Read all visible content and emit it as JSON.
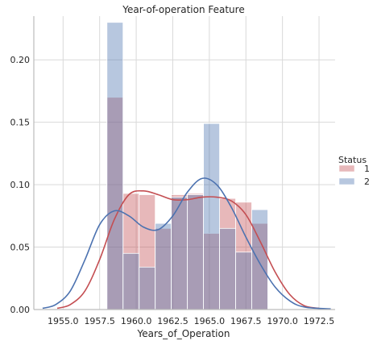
{
  "chart_data": {
    "type": "histogram",
    "title": "Year-of-operation Feature",
    "xlabel": "Years_of_Operation",
    "ylabel": "",
    "xlim": [
      1953.0,
      1973.6
    ],
    "ylim": [
      0.0,
      0.235
    ],
    "x_ticks": [
      1955.0,
      1957.5,
      1960.0,
      1962.5,
      1965.0,
      1967.5,
      1970.0,
      1972.5
    ],
    "x_tick_labels": [
      "1955.0",
      "1957.5",
      "1960.0",
      "1962.5",
      "1965.0",
      "1967.5",
      "1970.0",
      "1972.5"
    ],
    "y_ticks": [
      0.0,
      0.05,
      0.1,
      0.15,
      0.2
    ],
    "y_tick_labels": [
      "0.00",
      "0.05",
      "0.10",
      "0.15",
      "0.20"
    ],
    "grid": true,
    "legend": {
      "title": "Status",
      "placement": "right"
    },
    "bin_edges": [
      1958.0,
      1959.1,
      1960.2,
      1961.3,
      1962.4,
      1963.5,
      1964.6,
      1965.7,
      1966.8,
      1967.9,
      1969.0
    ],
    "series": [
      {
        "name": "1",
        "color": "#c44e52",
        "bar_values": [
          0.17,
          0.093,
          0.092,
          0.065,
          0.092,
          0.093,
          0.061,
          0.089,
          0.086,
          0.069
        ],
        "kde": [
          [
            1954.6,
            0.001
          ],
          [
            1955.5,
            0.004
          ],
          [
            1956.5,
            0.015
          ],
          [
            1957.5,
            0.04
          ],
          [
            1958.5,
            0.072
          ],
          [
            1959.5,
            0.092
          ],
          [
            1960.5,
            0.095
          ],
          [
            1961.5,
            0.092
          ],
          [
            1962.5,
            0.088
          ],
          [
            1963.5,
            0.088
          ],
          [
            1964.5,
            0.09
          ],
          [
            1965.5,
            0.09
          ],
          [
            1966.5,
            0.087
          ],
          [
            1967.5,
            0.076
          ],
          [
            1968.5,
            0.054
          ],
          [
            1969.5,
            0.03
          ],
          [
            1970.5,
            0.012
          ],
          [
            1971.5,
            0.003
          ],
          [
            1972.5,
            0.001
          ]
        ]
      },
      {
        "name": "2",
        "color": "#4c72b0",
        "bar_values": [
          0.23,
          0.045,
          0.034,
          0.069,
          0.09,
          0.092,
          0.149,
          0.065,
          0.046,
          0.08
        ],
        "kde": [
          [
            1953.6,
            0.001
          ],
          [
            1954.5,
            0.004
          ],
          [
            1955.5,
            0.015
          ],
          [
            1956.5,
            0.04
          ],
          [
            1957.5,
            0.068
          ],
          [
            1958.5,
            0.079
          ],
          [
            1959.5,
            0.075
          ],
          [
            1960.5,
            0.066
          ],
          [
            1961.5,
            0.064
          ],
          [
            1962.5,
            0.075
          ],
          [
            1963.5,
            0.094
          ],
          [
            1964.5,
            0.105
          ],
          [
            1965.5,
            0.1
          ],
          [
            1966.5,
            0.082
          ],
          [
            1967.5,
            0.058
          ],
          [
            1968.5,
            0.036
          ],
          [
            1969.5,
            0.018
          ],
          [
            1970.5,
            0.007
          ],
          [
            1971.5,
            0.002
          ],
          [
            1973.3,
            0.0005
          ]
        ]
      }
    ]
  }
}
